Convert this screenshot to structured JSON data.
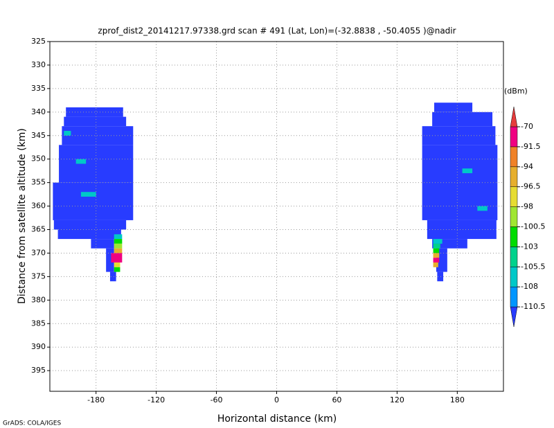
{
  "chart_data": {
    "type": "heatmap",
    "title": "zprof_dist2_20141217.97338.grd  scan # 491  (Lat, Lon)=(-32.8838 , -50.4055 )@nadir",
    "xlabel": "Horizontal distance (km)",
    "ylabel": "Distance from satellite altitude (km)",
    "footer": "GrADS: COLA/IGES",
    "xlim": [
      -226,
      226
    ],
    "xticks": [
      -180,
      -120,
      -60,
      0,
      60,
      120,
      180
    ],
    "ylim": [
      325,
      399.4
    ],
    "y_reversed": true,
    "yticks": [
      325,
      330,
      335,
      340,
      345,
      350,
      355,
      360,
      365,
      370,
      375,
      380,
      385,
      390,
      395
    ],
    "grid": true,
    "colorbar_label": "(dBm)",
    "levels": [
      -110.5,
      -108,
      -105.5,
      -103,
      -100.5,
      -98,
      -96.5,
      -94,
      -91.5,
      -70
    ],
    "colors": [
      "#283cff",
      "#0096ff",
      "#00c8c8",
      "#00d28c",
      "#00dc00",
      "#a0e632",
      "#e6dc32",
      "#e6af2d",
      "#f08228",
      "#f00082",
      "#e63c3c"
    ],
    "cells": {
      "y0": [
        339,
        341,
        343,
        347,
        355,
        363,
        365,
        367,
        369,
        374,
        366,
        367,
        368,
        369,
        370,
        372,
        373,
        344,
        350,
        357,
        338,
        340,
        343,
        347,
        363,
        367,
        369,
        374,
        367,
        368,
        369,
        370,
        371,
        372,
        352,
        360
      ],
      "y1": [
        341,
        343,
        347,
        355,
        363,
        365,
        367,
        369,
        374,
        376,
        367,
        368,
        369,
        370,
        372,
        373,
        374,
        345,
        351,
        358,
        340,
        343,
        347,
        363,
        367,
        369,
        374,
        376,
        368,
        369,
        370,
        371,
        372,
        373,
        353,
        361
      ],
      "x0": [
        -210,
        -212,
        -214,
        -217,
        -223,
        -222,
        -218,
        -185,
        -170,
        -166,
        -162,
        -162,
        -162,
        -162,
        -165,
        -162,
        -162,
        -212,
        -200,
        -195,
        157,
        155,
        145,
        145,
        150,
        155,
        159,
        160,
        156,
        156,
        156,
        156,
        156,
        156,
        185,
        200
      ],
      "x1": [
        -153,
        -150,
        -143,
        -143,
        -143,
        -150,
        -155,
        -162,
        -162,
        -160,
        -154,
        -154,
        -154,
        -154,
        -154,
        -156,
        -156,
        -205,
        -190,
        -180,
        195,
        215,
        218,
        220,
        219,
        190,
        170,
        166,
        165,
        163,
        162,
        162,
        162,
        161,
        195,
        210
      ],
      "values": [
        -112,
        -112,
        -112,
        -112,
        -112,
        -112,
        -112,
        -112,
        -112,
        -112,
        -107,
        -102,
        -99,
        -95,
        -80,
        -97,
        -102,
        -107,
        -107,
        -107,
        -112,
        -112,
        -112,
        -112,
        -112,
        -112,
        -112,
        -112,
        -107,
        -104,
        -102,
        -95,
        -80,
        -96,
        -107,
        -107
      ]
    }
  }
}
